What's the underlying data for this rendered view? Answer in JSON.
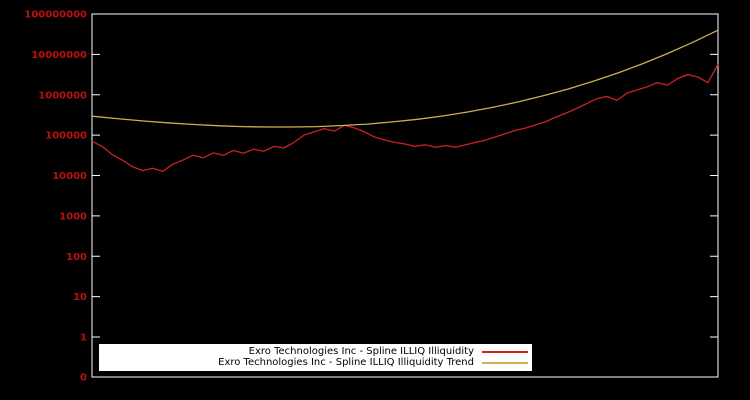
{
  "chart_data": {
    "type": "line",
    "title": "",
    "xlabel": "",
    "ylabel": "",
    "y_scale": "log",
    "ylim": [
      0,
      100000000
    ],
    "grid": false,
    "background_color": "#000000",
    "border_color": "#ffffff",
    "y_tick_color": "#bb1111",
    "y_tick_labels": [
      "100000000",
      "10000000",
      "1000000",
      "100000",
      "10000",
      "1000",
      "100",
      "10",
      "1",
      "0"
    ],
    "x_tick_labels": [],
    "legend": {
      "position": "bottom-center",
      "background": "#ffffff",
      "text_color": "#000000"
    },
    "series": [
      {
        "name": "Exro Technologies Inc - Spline ILLIQ Illiquidity",
        "color": "#cc2222",
        "values": [
          70800,
          52500,
          33100,
          24000,
          16600,
          13200,
          15100,
          12600,
          19100,
          24000,
          31600,
          27500,
          36300,
          31600,
          41700,
          35500,
          44700,
          39800,
          52500,
          47900,
          66100,
          100000,
          120000,
          145000,
          126000,
          174000,
          151000,
          120000,
          89100,
          75900,
          66100,
          60300,
          52500,
          57500,
          50100,
          55000,
          50100,
          57500,
          66100,
          75900,
          91200,
          110000,
          132000,
          151000,
          182000,
          219000,
          282000,
          355000,
          457000,
          603000,
          794000,
          912000,
          724000,
          1100000,
          1320000,
          1580000,
          2000000,
          1740000,
          2510000,
          3160000,
          2750000,
          2000000,
          5620000
        ]
      },
      {
        "name": "Exro Technologies Inc - Spline ILLIQ Illiquidity Trend",
        "color": "#ccb050",
        "values": [
          295000,
          256000,
          225000,
          202000,
          184000,
          171000,
          163000,
          159000,
          159000,
          163000,
          173000,
          188000,
          212000,
          247000,
          298000,
          374000,
          487000,
          660000,
          934000,
          1380000,
          2140000,
          3460000,
          5900000,
          10600000,
          20000000,
          39800000
        ]
      }
    ]
  }
}
